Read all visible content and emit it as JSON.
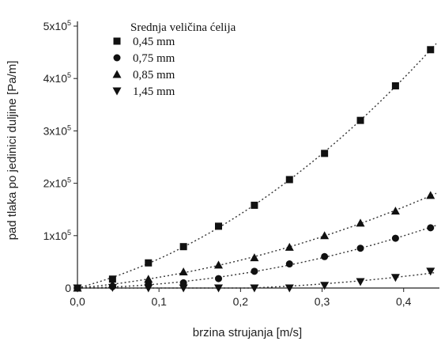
{
  "chart_data": {
    "type": "scatter",
    "xlabel": "brzina strujanja [m/s]",
    "ylabel": "pad tlaka po jedinici duljine [Pa/m]",
    "xlim": [
      0,
      0.44
    ],
    "ylim": [
      0,
      500000
    ],
    "x_ticks": [
      {
        "value": 0.0,
        "label": "0,0"
      },
      {
        "value": 0.1,
        "label": "0,1"
      },
      {
        "value": 0.2,
        "label": "0,2"
      },
      {
        "value": 0.3,
        "label": "0,3"
      },
      {
        "value": 0.4,
        "label": "0,4"
      }
    ],
    "y_ticks": [
      {
        "value": 0,
        "label": "0",
        "base": null,
        "exp": null
      },
      {
        "value": 100000,
        "label": "1x10^5",
        "base": "1x10",
        "exp": "5"
      },
      {
        "value": 200000,
        "label": "2x10^5",
        "base": "2x10",
        "exp": "5"
      },
      {
        "value": 300000,
        "label": "3x10^5",
        "base": "3x10",
        "exp": "5"
      },
      {
        "value": 400000,
        "label": "4x10^5",
        "base": "4x10",
        "exp": "5"
      },
      {
        "value": 500000,
        "label": "5x10^5",
        "base": "5x10",
        "exp": "5"
      }
    ],
    "grid": false,
    "legend": {
      "title": "Srednja veličina ćelija",
      "position": "top-left"
    },
    "series": [
      {
        "name": "0,45 mm",
        "marker": "square",
        "x": [
          0.0,
          0.043,
          0.087,
          0.13,
          0.173,
          0.217,
          0.26,
          0.303,
          0.347,
          0.39,
          0.433
        ],
        "y": [
          0,
          17000,
          48000,
          79000,
          118000,
          158000,
          207000,
          257000,
          320000,
          386000,
          455000
        ]
      },
      {
        "name": "0,75 mm",
        "marker": "circle",
        "x": [
          0.0,
          0.043,
          0.087,
          0.13,
          0.173,
          0.217,
          0.26,
          0.303,
          0.347,
          0.39,
          0.433
        ],
        "y": [
          0,
          3000,
          7000,
          10000,
          18000,
          32000,
          46000,
          60000,
          76000,
          95000,
          115000
        ]
      },
      {
        "name": "0,85 mm",
        "marker": "triangle-up",
        "x": [
          0.0,
          0.043,
          0.087,
          0.13,
          0.173,
          0.217,
          0.26,
          0.303,
          0.347,
          0.39,
          0.433
        ],
        "y": [
          0,
          7000,
          17000,
          31000,
          44000,
          58000,
          78000,
          100000,
          124000,
          147000,
          177000
        ]
      },
      {
        "name": "1,45 mm",
        "marker": "triangle-down",
        "x": [
          0.0,
          0.043,
          0.087,
          0.13,
          0.173,
          0.217,
          0.26,
          0.303,
          0.347,
          0.39,
          0.433
        ],
        "y": [
          0,
          1000,
          0,
          0,
          0,
          0,
          0,
          5000,
          12000,
          20000,
          32000
        ]
      }
    ],
    "colors": {
      "marker": "#111111",
      "fit_line": "#333333",
      "axis": "#222222"
    }
  }
}
